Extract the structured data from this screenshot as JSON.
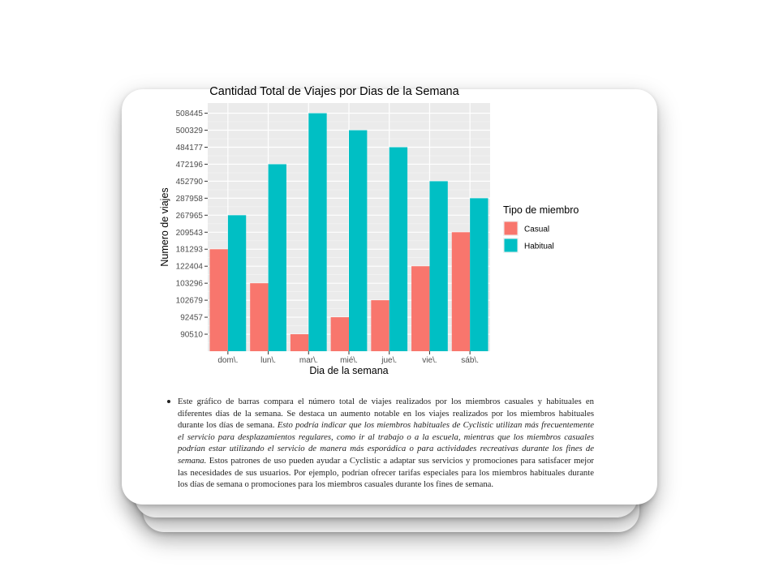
{
  "chart_data": {
    "type": "bar",
    "title": "Cantidad Total de Viajes por Dias de la Semana",
    "xlabel": "Dia de la semana",
    "ylabel": "Numero de viajes",
    "categories": [
      "dom\\.",
      "lun\\.",
      "mar\\.",
      "mié\\.",
      "jue\\.",
      "vie\\.",
      "sáb\\."
    ],
    "y_tick_labels": [
      "90510",
      "92457",
      "102679",
      "103296",
      "122404",
      "181293",
      "209543",
      "267965",
      "287958",
      "452790",
      "472196",
      "484177",
      "500329",
      "508445"
    ],
    "y_scale": "discrete (tick labels are the sorted observed values)",
    "series": [
      {
        "name": "Casual",
        "color": "#F8766D",
        "values": [
          181293,
          103296,
          90510,
          92457,
          102679,
          122404,
          209543
        ]
      },
      {
        "name": "Habitual",
        "color": "#00BFC4",
        "values": [
          267965,
          472196,
          508445,
          500329,
          484177,
          452790,
          287958
        ]
      }
    ],
    "legend": {
      "title": "Tipo de miembro",
      "position": "right"
    },
    "grid": true
  },
  "text": {
    "before_italic": "Este gráfico de barras compara el número total de viajes realizados por los miembros casuales y habituales en diferentes días de la semana. Se destaca un aumento notable en los viajes realizados por los miembros habituales durante los días de semana. ",
    "italic": "Esto podría indicar que los miembros habituales de Cyclistic utilizan más frecuentemente el servicio para desplazamientos regulares, como ir al trabajo o a la escuela, mientras que los miembros casuales podrían estar utilizando el servicio de manera más esporádica o para actividades recreativas durante los fines de semana.",
    "after_italic": " Estos patrones de uso pueden ayudar a Cyclistic a adaptar sus servicios y promociones para satisfacer mejor las necesidades de sus usuarios. Por ejemplo, podrían ofrecer tarifas especiales para los miembros habituales durante los días de semana o promociones para los miembros casuales durante los fines de semana."
  }
}
